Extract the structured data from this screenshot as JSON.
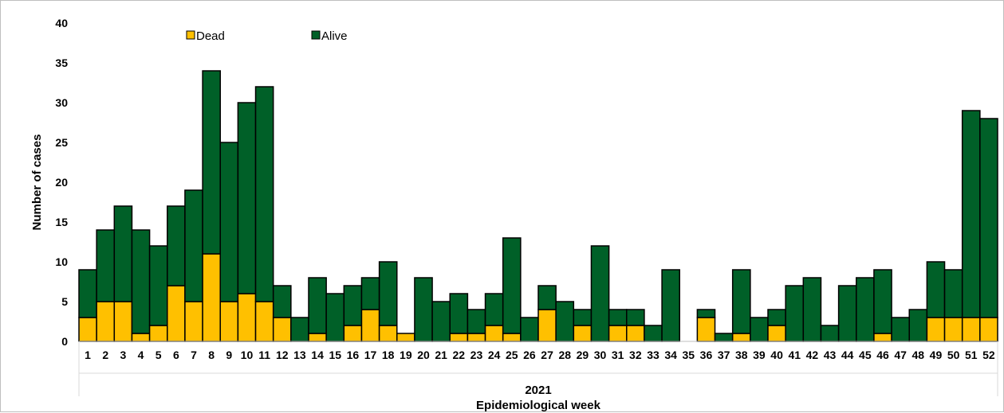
{
  "chart_data": {
    "type": "bar",
    "stacked": true,
    "ylabel": "Number of cases",
    "xlabel": "Epidemiological week",
    "group_label": "2021",
    "ylim": [
      0,
      40
    ],
    "yticks": [
      0,
      5,
      10,
      15,
      20,
      25,
      30,
      35,
      40
    ],
    "grid": false,
    "legend_position": "top-left",
    "categories": [
      "1",
      "2",
      "3",
      "4",
      "5",
      "6",
      "7",
      "8",
      "9",
      "10",
      "11",
      "12",
      "13",
      "14",
      "15",
      "16",
      "17",
      "18",
      "19",
      "20",
      "21",
      "22",
      "23",
      "24",
      "25",
      "26",
      "27",
      "28",
      "29",
      "30",
      "31",
      "32",
      "33",
      "34",
      "35",
      "36",
      "37",
      "38",
      "39",
      "40",
      "41",
      "42",
      "43",
      "44",
      "45",
      "46",
      "47",
      "48",
      "49",
      "50",
      "51",
      "52"
    ],
    "series": [
      {
        "name": "Dead",
        "color": "#ffc000",
        "values": [
          3,
          5,
          5,
          1,
          2,
          7,
          5,
          11,
          5,
          6,
          5,
          3,
          0,
          1,
          0,
          2,
          4,
          2,
          1,
          0,
          0,
          1,
          1,
          2,
          1,
          0,
          4,
          0,
          2,
          0,
          2,
          2,
          0,
          0,
          0,
          3,
          0,
          1,
          0,
          2,
          0,
          0,
          0,
          0,
          0,
          1,
          0,
          0,
          3,
          3,
          3,
          3
        ]
      },
      {
        "name": "Alive",
        "color": "#006028",
        "values": [
          6,
          9,
          12,
          13,
          10,
          10,
          14,
          23,
          20,
          24,
          27,
          4,
          3,
          7,
          6,
          5,
          4,
          8,
          0,
          8,
          5,
          5,
          3,
          4,
          12,
          3,
          3,
          5,
          2,
          12,
          2,
          2,
          2,
          9,
          0,
          1,
          1,
          8,
          3,
          2,
          7,
          8,
          2,
          7,
          8,
          8,
          3,
          4,
          7,
          6,
          26,
          25
        ]
      }
    ]
  }
}
